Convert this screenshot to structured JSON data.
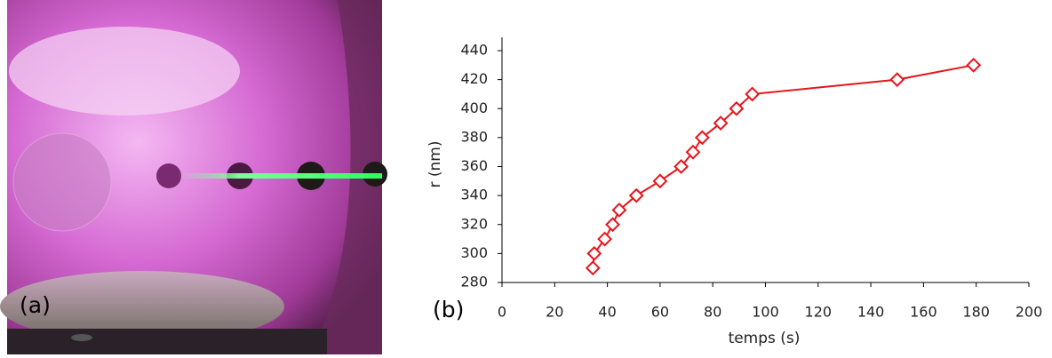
{
  "panel_labels": [
    "(a)",
    "(b)"
  ],
  "chart_data": {
    "type": "line",
    "x_label": "temps (s)",
    "y_label": "r (nm)",
    "x": [
      34.5,
      35,
      39,
      42,
      44.5,
      51,
      60,
      68,
      72.5,
      76,
      83,
      89,
      95,
      150,
      179
    ],
    "values": [
      290,
      300,
      310,
      320,
      330,
      340,
      350,
      360,
      370,
      380,
      390,
      400,
      410,
      420,
      430
    ],
    "color": "#e8141c",
    "marker": "diamond",
    "xlim": [
      0,
      200
    ],
    "xticks": [
      0,
      20,
      40,
      60,
      80,
      100,
      120,
      140,
      160,
      180,
      200
    ],
    "ylim": [
      280,
      440
    ],
    "yticks": [
      280,
      300,
      320,
      340,
      360,
      380,
      400,
      420,
      440
    ],
    "grid": false
  }
}
